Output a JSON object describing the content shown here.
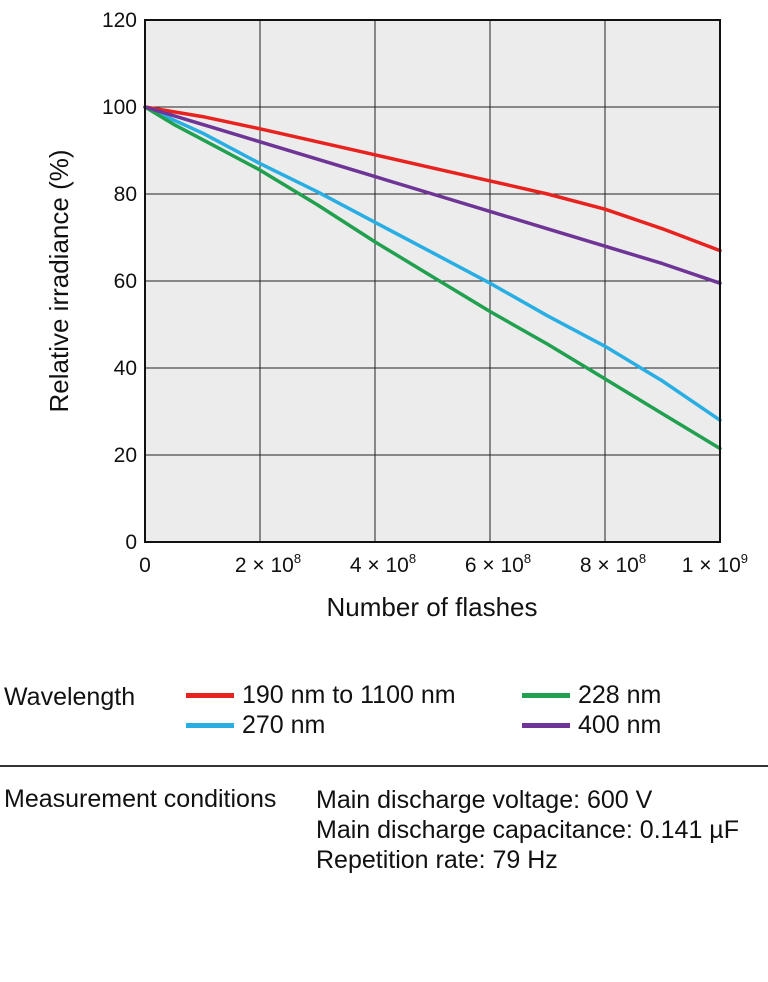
{
  "chart_data": {
    "type": "line",
    "xlabel": "Number of flashes",
    "ylabel": "Relative irradiance (%)",
    "xlim": [
      0,
      1000000000
    ],
    "ylim": [
      0,
      120
    ],
    "grid": true,
    "x_ticks": [
      {
        "value": 0,
        "label": "0",
        "exp": ""
      },
      {
        "value": 200000000,
        "label": "2 × 10",
        "exp": "8"
      },
      {
        "value": 400000000,
        "label": "4 × 10",
        "exp": "8"
      },
      {
        "value": 600000000,
        "label": "6 × 10",
        "exp": "8"
      },
      {
        "value": 800000000,
        "label": "8 × 10",
        "exp": "8"
      },
      {
        "value": 1000000000,
        "label": "1 × 10",
        "exp": "9"
      }
    ],
    "y_ticks": [
      0,
      20,
      40,
      60,
      80,
      100,
      120
    ],
    "series": [
      {
        "name": "190 nm to 1100 nm",
        "color": "#e8231f",
        "x": [
          0,
          100000000,
          200000000,
          300000000,
          400000000,
          500000000,
          600000000,
          700000000,
          800000000,
          900000000,
          1000000000
        ],
        "values": [
          100,
          97.8,
          95,
          92,
          89,
          86,
          83,
          80,
          76.5,
          72,
          67
        ]
      },
      {
        "name": "270 nm",
        "color": "#29aee3",
        "x": [
          0,
          100000000,
          200000000,
          300000000,
          400000000,
          500000000,
          600000000,
          700000000,
          800000000,
          900000000,
          1000000000
        ],
        "values": [
          100,
          94,
          87,
          80.5,
          73.5,
          66.5,
          59.5,
          52,
          45,
          37,
          28
        ]
      },
      {
        "name": "228 nm",
        "color": "#21a04f",
        "x": [
          0,
          50000000,
          100000000,
          200000000,
          300000000,
          400000000,
          500000000,
          600000000,
          700000000,
          800000000,
          900000000,
          1000000000
        ],
        "values": [
          100,
          96,
          92.5,
          85.5,
          77.5,
          69,
          61,
          53,
          45.5,
          37.5,
          29.5,
          21.5
        ]
      },
      {
        "name": "400 nm",
        "color": "#6e3596",
        "x": [
          0,
          100000000,
          200000000,
          300000000,
          400000000,
          500000000,
          600000000,
          700000000,
          800000000,
          900000000,
          1000000000
        ],
        "values": [
          100,
          96,
          92,
          88,
          84,
          80,
          76,
          72,
          68,
          64,
          59.5
        ]
      }
    ]
  },
  "legend": {
    "label": "Wavelength",
    "items": [
      {
        "text": "190 nm to 1100 nm",
        "color": "#e8231f"
      },
      {
        "text": "228 nm",
        "color": "#21a04f"
      },
      {
        "text": "270 nm",
        "color": "#29aee3"
      },
      {
        "text": "400 nm",
        "color": "#6e3596"
      }
    ]
  },
  "conditions": {
    "label": "Measurement conditions",
    "lines": [
      "Main discharge voltage: 600 V",
      "Main discharge capacitance: 0.141 µF",
      "Repetition rate: 79 Hz"
    ]
  }
}
